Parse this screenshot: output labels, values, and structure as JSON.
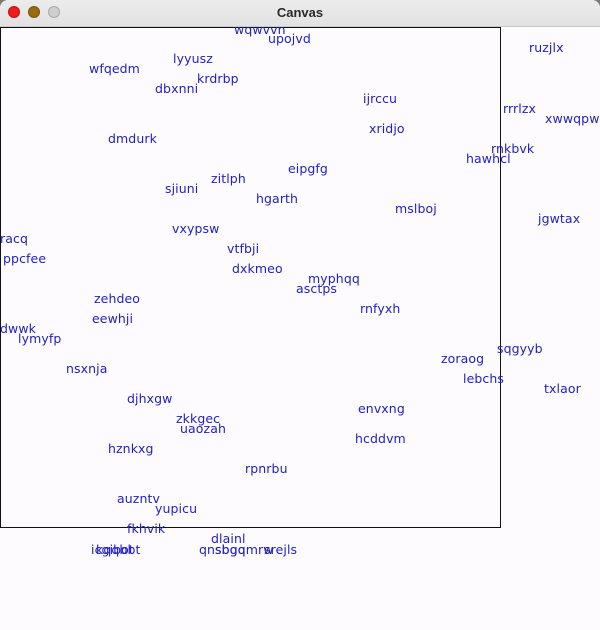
{
  "window": {
    "title": "Canvas",
    "colors": {
      "close": "#ee1c1c",
      "minimize": "#9a6a10",
      "zoom": "#cfcfcf",
      "label": "#2121c4"
    }
  },
  "canvas": {
    "labels": [
      "wqwvvn",
      "upojvd",
      "ruzjlx",
      "lyyusz",
      "wfqedm",
      "krdrbp",
      "dbxnni",
      "ijrccu",
      "rrrlzx",
      "xwwqpw",
      "xridjo",
      "dmdurk",
      "rnkbvk",
      "hawhcl",
      "eipgfg",
      "zitlph",
      "sjiuni",
      "hgarth",
      "mslboj",
      "jgwtax",
      "vxypsw",
      "racq",
      "vtfbji",
      "ppcfee",
      "dxkmeo",
      "myphqq",
      "asctps",
      "zehdeo",
      "rnfyxh",
      "eewhji",
      "dwwk",
      "lymyfp",
      "sqgyyb",
      "zoraog",
      "nsxnja",
      "lebchs",
      "txlaor",
      "djhxgw",
      "envxng",
      "zkkgec",
      "uaozah",
      "hcddvm",
      "hznkxg",
      "rpnrbu",
      "auzntv",
      "yupicu",
      "fkhvik",
      "dlainl",
      "icgibot",
      "kqqbbt",
      "qnsbgq",
      "sbgqmrw",
      "srejls"
    ]
  }
}
